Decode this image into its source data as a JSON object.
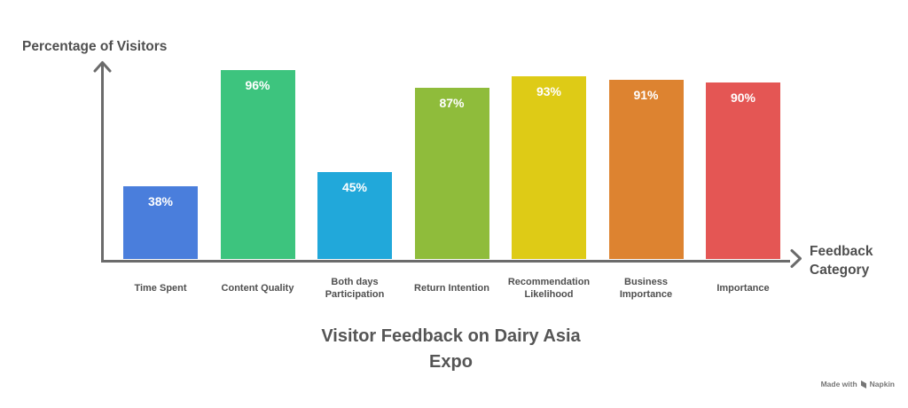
{
  "chart_data": {
    "type": "bar",
    "title": "Visitor Feedback on Dairy Asia Expo",
    "xlabel": "Feedback Category",
    "ylabel": "Percentage of Visitors",
    "categories": [
      "Time Spent",
      "Content Quality",
      "Both days Participation",
      "Return Intention",
      "Recommendation Likelihood",
      "Business Importance",
      "Importance"
    ],
    "values": [
      38,
      96,
      45,
      87,
      93,
      91,
      90
    ],
    "value_suffix": "%",
    "colors": [
      "#4a7edc",
      "#3dc47e",
      "#21a8da",
      "#8fbc3b",
      "#decb16",
      "#dd8330",
      "#e45654"
    ],
    "ylim": [
      0,
      100
    ],
    "grid": false,
    "legend": false,
    "bar_label_color": "#ffffff"
  },
  "palette": {
    "axis": "#6b6b6b",
    "text": "#4f4f4f",
    "title": "#555555",
    "background": "#ffffff",
    "credit": "#767676"
  },
  "footer": {
    "made_with": "Made with",
    "brand": "Napkin"
  }
}
